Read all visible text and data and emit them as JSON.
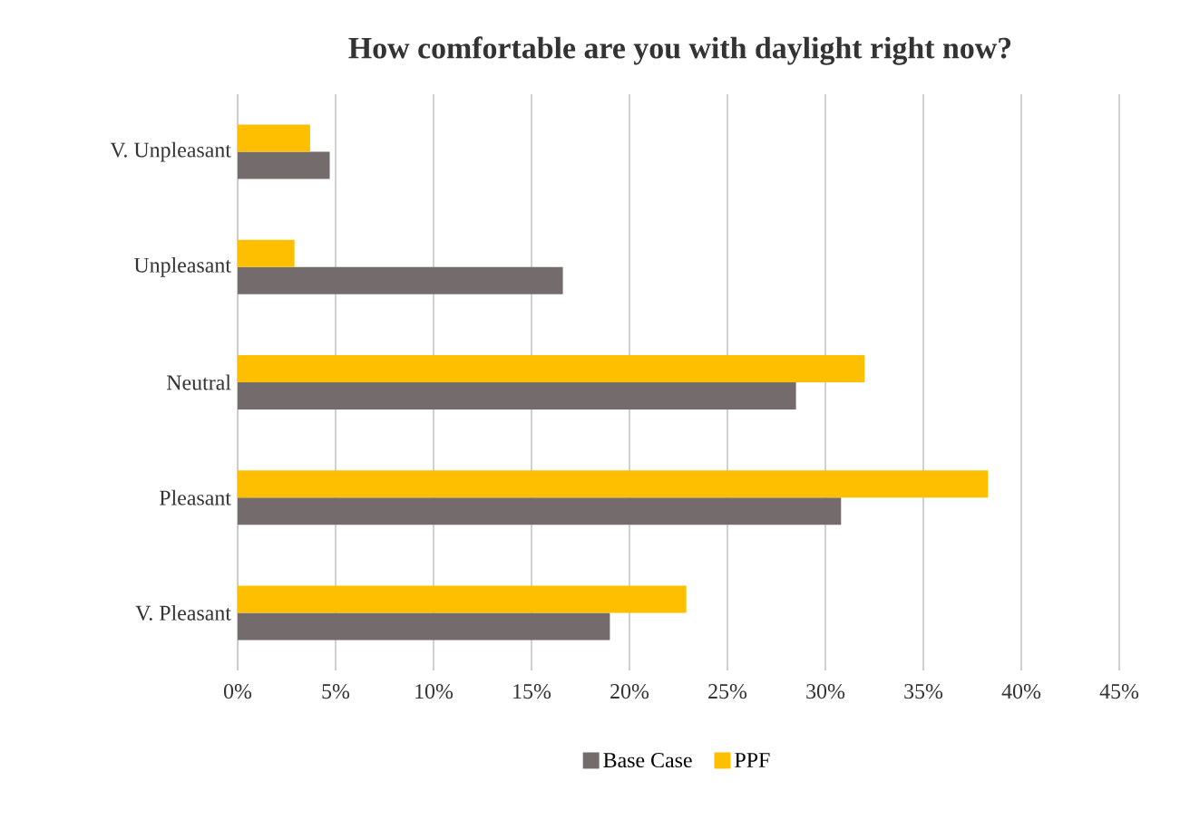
{
  "chart_data": {
    "type": "bar",
    "orientation": "horizontal",
    "title": "How comfortable are you with daylight right now?",
    "categories": [
      "V. Unpleasant",
      "Unpleasant",
      "Neutral",
      "Pleasant",
      "V. Pleasant"
    ],
    "series": [
      {
        "name": "Base Case",
        "color": "#746c6c",
        "values": [
          4.7,
          16.6,
          28.5,
          30.8,
          19.0
        ]
      },
      {
        "name": "PPF",
        "color": "#fdbf00",
        "values": [
          3.7,
          2.9,
          32.0,
          38.3,
          22.9
        ]
      }
    ],
    "xlim": [
      0,
      45
    ],
    "xticks": [
      {
        "value": 0,
        "label": "0%"
      },
      {
        "value": 5,
        "label": "5%"
      },
      {
        "value": 10,
        "label": "10%"
      },
      {
        "value": 15,
        "label": "15%"
      },
      {
        "value": 20,
        "label": "20%"
      },
      {
        "value": 25,
        "label": "25%"
      },
      {
        "value": 30,
        "label": "30%"
      },
      {
        "value": 35,
        "label": "35%"
      },
      {
        "value": 40,
        "label": "40%"
      },
      {
        "value": 45,
        "label": "45%"
      }
    ],
    "grid": "x",
    "legend": "bottom"
  }
}
